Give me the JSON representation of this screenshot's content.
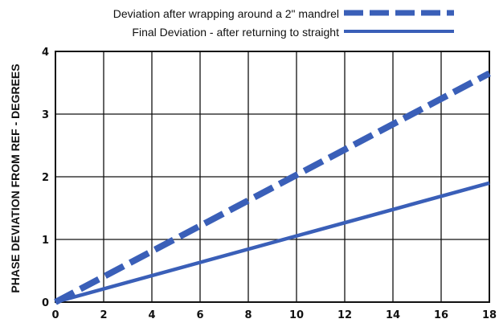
{
  "chart_data": {
    "type": "line",
    "title": "",
    "xlabel": "",
    "ylabel": "PHASE DEVIATION FROM REF - DEGREES",
    "xlim": [
      0,
      18
    ],
    "ylim": [
      0,
      4
    ],
    "x_ticks": [
      "0",
      "2",
      "4",
      "6",
      "8",
      "10",
      "12",
      "14",
      "16",
      "18"
    ],
    "y_ticks": [
      "0",
      "1",
      "2",
      "3",
      "4"
    ],
    "grid": true,
    "legend_position": "top-right",
    "series": [
      {
        "name": "Deviation after wrapping around a 2\" mandrel",
        "style": "dashed",
        "color": "#3a5fb8",
        "x": [
          0,
          18
        ],
        "values": [
          0,
          3.65
        ]
      },
      {
        "name": "Final Deviation - after returning to straight",
        "style": "solid",
        "color": "#3a5fb8",
        "x": [
          0,
          18
        ],
        "values": [
          0,
          1.9
        ]
      }
    ]
  }
}
